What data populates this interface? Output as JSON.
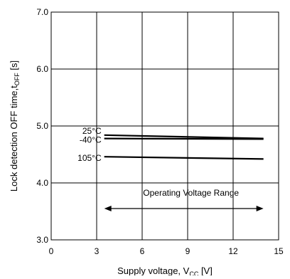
{
  "chart_data": {
    "type": "line",
    "title": "",
    "xlabel": "Supply voltage, V",
    "xlabel_sub": "CC",
    "xlabel_unit": " [V]",
    "ylabel": "Lock detection OFF time,t",
    "ylabel_sub": "OFF",
    "ylabel_unit": " [s]",
    "xlim": [
      0,
      15
    ],
    "ylim": [
      3.0,
      7.0
    ],
    "x_ticks": [
      0,
      3,
      6,
      9,
      12,
      15
    ],
    "x_tick_labels": [
      "0",
      "3",
      "6",
      "9",
      "12",
      "15"
    ],
    "y_ticks": [
      3.0,
      4.0,
      5.0,
      6.0,
      7.0
    ],
    "y_tick_labels": [
      "3.0",
      "4.0",
      "5.0",
      "6.0",
      "7.0"
    ],
    "grid": true,
    "series": [
      {
        "name": "25°C",
        "x": [
          3.5,
          14
        ],
        "y": [
          4.84,
          4.78
        ]
      },
      {
        "name": "-40°C",
        "x": [
          3.5,
          14
        ],
        "y": [
          4.78,
          4.77
        ]
      },
      {
        "name": "105°C",
        "x": [
          3.5,
          14
        ],
        "y": [
          4.46,
          4.42
        ]
      }
    ],
    "annotations": {
      "range_label": "Operating Voltage Range",
      "range_x": [
        3.5,
        14
      ],
      "range_y": 3.55
    }
  }
}
